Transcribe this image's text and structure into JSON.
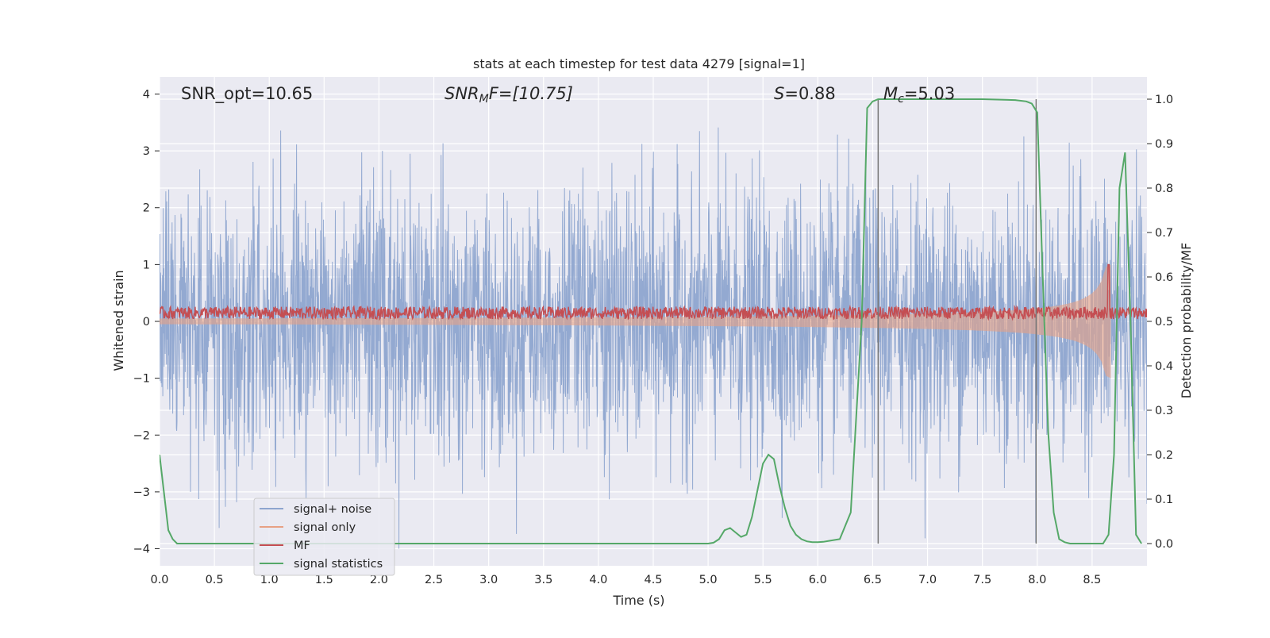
{
  "chart_data": {
    "type": "line",
    "title": "stats at each timestep for test data 4279 [signal=1]",
    "xlabel": "Time (s)",
    "ylabel": "Whitened strain",
    "ylabel_right": "Detection probability/MF",
    "xlim": [
      0.0,
      9.0
    ],
    "ylim": [
      -4.3,
      4.3
    ],
    "ylim_right": [
      -0.05,
      1.05
    ],
    "grid": true,
    "legend_position": "lower-left",
    "xticks": [
      "0.0",
      "0.5",
      "1.0",
      "1.5",
      "2.0",
      "2.5",
      "3.0",
      "3.5",
      "4.0",
      "4.5",
      "5.0",
      "5.5",
      "6.0",
      "6.5",
      "7.0",
      "7.5",
      "8.0",
      "8.5"
    ],
    "yticks": [
      "4",
      "3",
      "2",
      "1",
      "0",
      "−1",
      "−2",
      "−3",
      "−4"
    ],
    "yticks_right": [
      "1.0",
      "0.9",
      "0.8",
      "0.7",
      "0.6",
      "0.5",
      "0.4",
      "0.3",
      "0.2",
      "0.1",
      "0.0"
    ],
    "annotations": {
      "snr_opt": "SNR_opt=10.65",
      "snr_mf_base": "SNR",
      "snr_mf_sub": "M",
      "snr_mf_rest": "F=[10.75]",
      "s_sym": "S",
      "s_val": "=0.88",
      "mc_sym": "M",
      "mc_sub": "c",
      "mc_val": "=5.03"
    },
    "series": [
      {
        "name": "signal+ noise",
        "color": "#8ea5cf",
        "amplitude_range": [
          -4.0,
          3.8
        ]
      },
      {
        "name": "signal only",
        "color": "#e7a184",
        "envelope_start": 0.05,
        "envelope_end": 1.0,
        "end_x": 8.67
      },
      {
        "name": "MF",
        "color": "#c44e52",
        "baseline": 0.15,
        "spike_x": 8.65,
        "spike_y": 1.0
      },
      {
        "name": "signal statistics",
        "color": "#55a868",
        "x": [
          0.0,
          0.08,
          0.12,
          0.16,
          0.2,
          0.5,
          1.0,
          2.0,
          3.0,
          4.0,
          4.9,
          5.0,
          5.05,
          5.1,
          5.15,
          5.2,
          5.25,
          5.3,
          5.35,
          5.4,
          5.45,
          5.5,
          5.55,
          5.6,
          5.65,
          5.7,
          5.75,
          5.8,
          5.85,
          5.9,
          5.95,
          6.0,
          6.05,
          6.1,
          6.2,
          6.3,
          6.4,
          6.45,
          6.5,
          6.55,
          6.6,
          6.65,
          6.7,
          6.8,
          7.0,
          7.5,
          7.8,
          7.9,
          7.95,
          8.0,
          8.05,
          8.1,
          8.15,
          8.2,
          8.25,
          8.3,
          8.4,
          8.5,
          8.6,
          8.65,
          8.7,
          8.75,
          8.8,
          8.85,
          8.9,
          8.95
        ],
        "y": [
          0.2,
          0.03,
          0.01,
          0.0,
          0.0,
          0.0,
          0.0,
          0.0,
          0.0,
          0.0,
          0.0,
          0.0,
          0.002,
          0.01,
          0.03,
          0.035,
          0.025,
          0.015,
          0.02,
          0.06,
          0.12,
          0.18,
          0.2,
          0.19,
          0.13,
          0.08,
          0.04,
          0.02,
          0.01,
          0.005,
          0.003,
          0.003,
          0.004,
          0.006,
          0.01,
          0.07,
          0.5,
          0.98,
          0.995,
          1.0,
          1.0,
          1.0,
          1.0,
          1.0,
          1.0,
          1.0,
          0.998,
          0.995,
          0.99,
          0.97,
          0.6,
          0.25,
          0.07,
          0.01,
          0.003,
          0.0,
          0.0,
          0.0,
          0.0,
          0.02,
          0.2,
          0.8,
          0.88,
          0.5,
          0.02,
          0.0
        ]
      },
      {
        "name": "",
        "color": "#777777",
        "type": "vline",
        "x": [
          6.55,
          7.99
        ],
        "y_top": 1.0,
        "y_bottom": 0.0
      }
    ]
  }
}
